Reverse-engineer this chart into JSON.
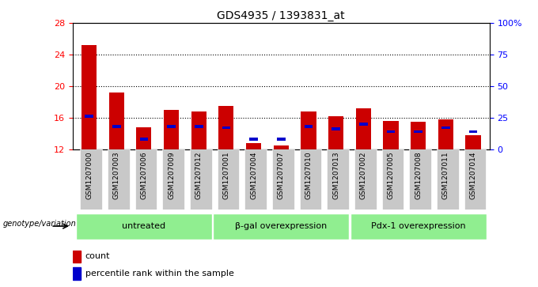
{
  "title": "GDS4935 / 1393831_at",
  "samples": [
    "GSM1207000",
    "GSM1207003",
    "GSM1207006",
    "GSM1207009",
    "GSM1207012",
    "GSM1207001",
    "GSM1207004",
    "GSM1207007",
    "GSM1207010",
    "GSM1207013",
    "GSM1207002",
    "GSM1207005",
    "GSM1207008",
    "GSM1207011",
    "GSM1207014"
  ],
  "count_values": [
    25.2,
    19.2,
    14.8,
    17.0,
    16.8,
    17.5,
    12.8,
    12.5,
    16.8,
    16.2,
    17.2,
    15.6,
    15.5,
    15.8,
    13.8
  ],
  "percentile_values": [
    26,
    18,
    8,
    18,
    18,
    17,
    8,
    8,
    18,
    16,
    20,
    14,
    14,
    17,
    14
  ],
  "ylim_left": [
    12,
    28
  ],
  "ylim_right": [
    0,
    100
  ],
  "yticks_left": [
    12,
    16,
    20,
    24,
    28
  ],
  "yticks_right": [
    0,
    25,
    50,
    75,
    100
  ],
  "yticklabels_right": [
    "0",
    "25",
    "50",
    "75",
    "100%"
  ],
  "groups": [
    {
      "label": "untreated",
      "start": 0,
      "end": 5
    },
    {
      "label": "β-gal overexpression",
      "start": 5,
      "end": 10
    },
    {
      "label": "Pdx-1 overexpression",
      "start": 10,
      "end": 15
    }
  ],
  "group_color": "#90ee90",
  "bar_color_red": "#cc0000",
  "bar_color_blue": "#0000cc",
  "bar_width": 0.55,
  "xticklabel_bg": "#c8c8c8",
  "legend_label_count": "count",
  "legend_label_percentile": "percentile rank within the sample",
  "genotype_label": "genotype/variation"
}
